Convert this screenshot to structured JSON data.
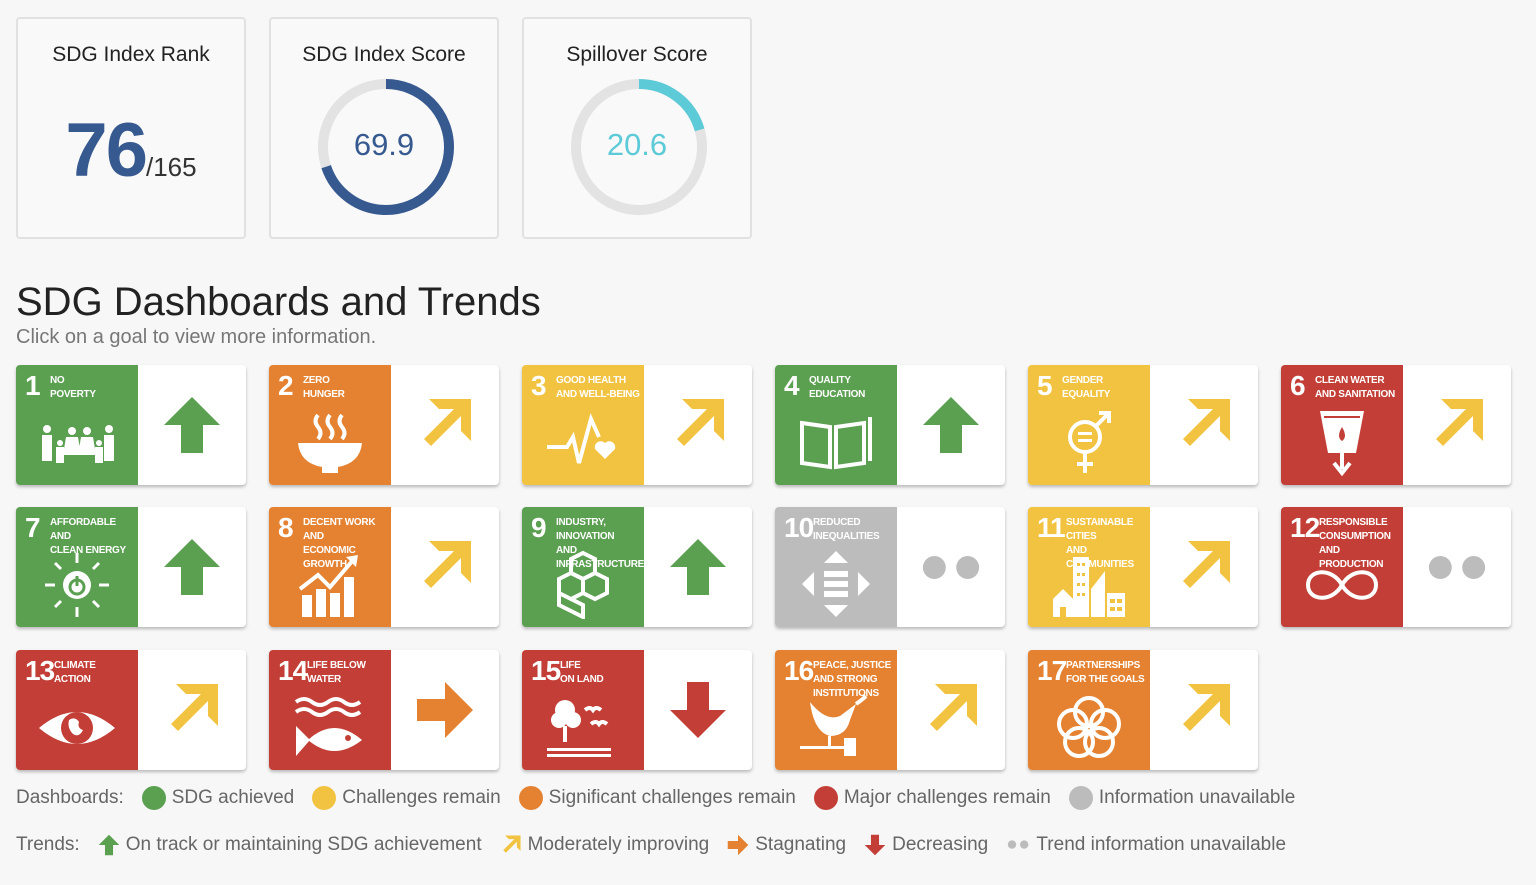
{
  "score_cards": {
    "rank": {
      "title": "SDG Index Rank",
      "value": "76",
      "total": "/165"
    },
    "index_score": {
      "title": "SDG Index Score",
      "value": "69.9",
      "percent": 69.9,
      "color": "#36598f"
    },
    "spillover": {
      "title": "Spillover Score",
      "value": "20.6",
      "percent": 20.6,
      "color": "#5dcad8"
    }
  },
  "section": {
    "title": "SDG Dashboards and Trends",
    "subtitle": "Click on a goal to view more information."
  },
  "colors": {
    "green": "#5b9f51",
    "yellow": "#f2c341",
    "orange": "#e58231",
    "red": "#c23e36",
    "grey": "#bcbcbc"
  },
  "goals": [
    {
      "number": "1",
      "name": "No\nPoverty",
      "dashboard": "green",
      "trend": "up",
      "icon": "family-icon"
    },
    {
      "number": "2",
      "name": "Zero\nHunger",
      "dashboard": "orange",
      "trend": "moderate",
      "icon": "bowl-icon"
    },
    {
      "number": "3",
      "name": "Good Health\nand Well-Being",
      "dashboard": "yellow",
      "trend": "moderate",
      "icon": "heartbeat-icon"
    },
    {
      "number": "4",
      "name": "Quality\nEducation",
      "dashboard": "green",
      "trend": "up",
      "icon": "book-icon"
    },
    {
      "number": "5",
      "name": "Gender\nEquality",
      "dashboard": "yellow",
      "trend": "moderate",
      "icon": "gender-icon"
    },
    {
      "number": "6",
      "name": "Clean Water\nand Sanitation",
      "dashboard": "red",
      "trend": "moderate",
      "icon": "water-glass-icon"
    },
    {
      "number": "7",
      "name": "Affordable and\nClean Energy",
      "dashboard": "green",
      "trend": "up",
      "icon": "sun-power-icon"
    },
    {
      "number": "8",
      "name": "Decent Work and\nEconomic Growth",
      "dashboard": "orange",
      "trend": "moderate",
      "icon": "growth-chart-icon"
    },
    {
      "number": "9",
      "name": "Industry, Innovation\nand Infrastructure",
      "dashboard": "green",
      "trend": "up",
      "icon": "cubes-icon"
    },
    {
      "number": "10",
      "name": "Reduced\nInequalities",
      "dashboard": "grey",
      "trend": "na",
      "icon": "equality-arrows-icon"
    },
    {
      "number": "11",
      "name": "Sustainable Cities\nand Communities",
      "dashboard": "yellow",
      "trend": "moderate",
      "icon": "buildings-icon"
    },
    {
      "number": "12",
      "name": "Responsible\nConsumption\nand Production",
      "dashboard": "red",
      "trend": "na",
      "icon": "infinity-icon"
    },
    {
      "number": "13",
      "name": "Climate\nAction",
      "dashboard": "red",
      "trend": "moderate",
      "icon": "eye-globe-icon"
    },
    {
      "number": "14",
      "name": "Life Below\nWater",
      "dashboard": "red",
      "trend": "stagnating",
      "icon": "fish-icon"
    },
    {
      "number": "15",
      "name": "Life\nOn Land",
      "dashboard": "red",
      "trend": "down",
      "icon": "tree-birds-icon"
    },
    {
      "number": "16",
      "name": "Peace, Justice\nand Strong\nInstitutions",
      "dashboard": "orange",
      "trend": "moderate",
      "icon": "dove-gavel-icon"
    },
    {
      "number": "17",
      "name": "Partnerships\nfor the Goals",
      "dashboard": "orange",
      "trend": "moderate",
      "icon": "rings-icon"
    }
  ],
  "legend": {
    "dashboards": {
      "label": "Dashboards:",
      "items": [
        {
          "color": "#5b9f51",
          "label": "SDG achieved"
        },
        {
          "color": "#f2c341",
          "label": "Challenges remain"
        },
        {
          "color": "#e58231",
          "label": "Significant challenges remain"
        },
        {
          "color": "#c23e36",
          "label": "Major challenges remain"
        },
        {
          "color": "#bcbcbc",
          "label": "Information unavailable"
        }
      ]
    },
    "trends": {
      "label": "Trends:",
      "items": [
        {
          "trend": "up",
          "label": "On track or maintaining SDG achievement"
        },
        {
          "trend": "moderate",
          "label": "Moderately improving"
        },
        {
          "trend": "stagnating",
          "label": "Stagnating"
        },
        {
          "trend": "down",
          "label": "Decreasing"
        },
        {
          "trend": "na",
          "label": "Trend information unavailable"
        }
      ]
    }
  }
}
